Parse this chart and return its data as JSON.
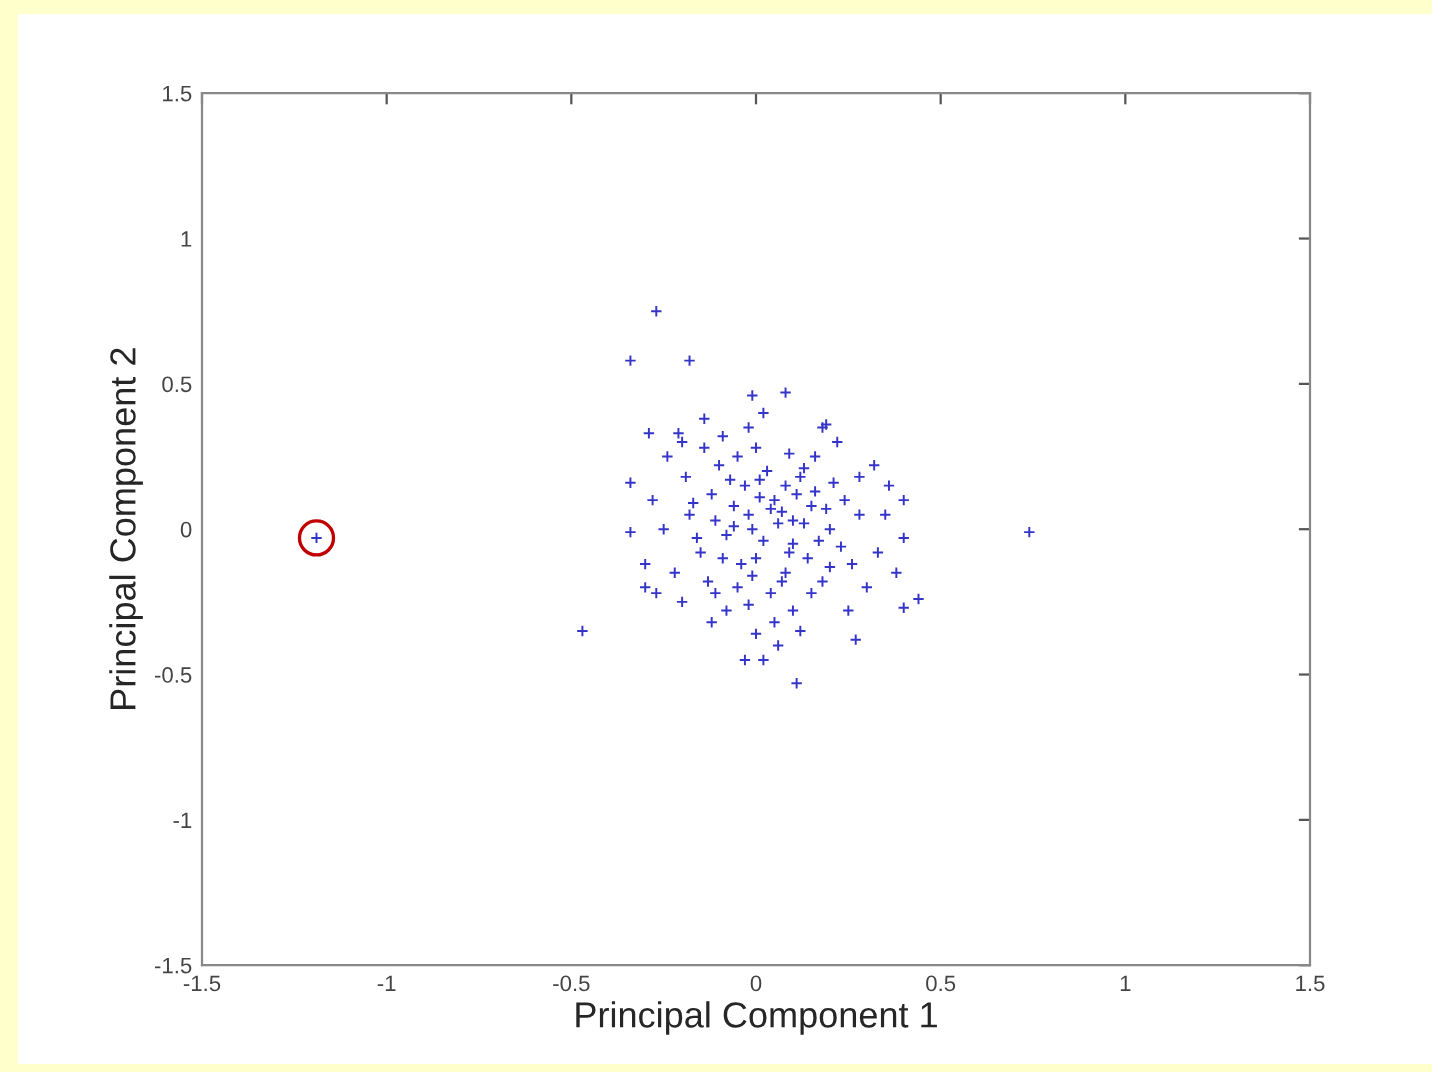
{
  "chart_data": {
    "type": "scatter",
    "xlabel": "Principal Component 1",
    "ylabel": "Principal Component 2",
    "xlim": [
      -1.5,
      1.5
    ],
    "ylim": [
      -1.5,
      1.5
    ],
    "xticks": [
      -1.5,
      -1,
      -0.5,
      0,
      0.5,
      1,
      1.5
    ],
    "yticks": [
      -1.5,
      -1,
      -0.5,
      0,
      0.5,
      1,
      1.5
    ],
    "grid": false,
    "legend": false,
    "series": [
      {
        "color": "#3434c8",
        "marker": "cross",
        "x": [
          -1.19,
          -0.27,
          -0.34,
          -0.18,
          -0.47,
          0.74,
          0.11,
          -0.03,
          0.02,
          0.27,
          0.4,
          0.44,
          0.36,
          0.19,
          0.08,
          -0.01,
          -0.29,
          -0.21,
          -0.34,
          -0.34,
          -0.3,
          0.4,
          -0.02,
          0.05,
          0.1,
          -0.08,
          0.0,
          0.15,
          -0.12,
          0.03,
          0.08,
          -0.05,
          0.2,
          -0.15,
          0.12,
          -0.1,
          0.18,
          -0.03,
          0.06,
          -0.06,
          0.02,
          0.14,
          -0.18,
          0.24,
          0.0,
          -0.08,
          0.1,
          0.26,
          -0.22,
          0.16,
          -0.14,
          0.04,
          -0.01,
          0.07,
          0.11,
          -0.04,
          0.09,
          -0.11,
          0.13,
          0.01,
          -0.07,
          0.17,
          -0.13,
          0.21,
          -0.19,
          0.05,
          -0.02,
          0.28,
          -0.25,
          0.3,
          -0.2,
          0.22,
          -0.09,
          0.12,
          -0.12,
          0.33,
          -0.28,
          0.02,
          0.06,
          0.32,
          -0.24,
          0.25,
          0.08,
          -0.05,
          0.15,
          -0.16,
          0.19,
          -0.01,
          0.04,
          0.1,
          -0.09,
          0.13,
          -0.02,
          0.07,
          -0.17,
          0.23,
          0.01,
          -0.06,
          0.16,
          -0.11,
          0.09,
          0.2,
          0.38,
          0.35,
          -0.3,
          -0.27,
          0.28,
          -0.2,
          0.18,
          0.0,
          -0.14,
          0.4
        ],
        "values": [
          -0.03,
          0.75,
          0.58,
          0.58,
          -0.35,
          -0.01,
          -0.53,
          -0.45,
          -0.45,
          -0.38,
          -0.27,
          -0.24,
          0.15,
          0.36,
          0.47,
          0.46,
          0.33,
          0.33,
          0.16,
          -0.01,
          -0.2,
          -0.03,
          0.05,
          0.1,
          -0.05,
          -0.02,
          -0.1,
          0.08,
          0.12,
          0.2,
          -0.15,
          -0.2,
          0.0,
          -0.08,
          0.18,
          0.22,
          -0.18,
          0.15,
          0.02,
          0.08,
          -0.04,
          -0.1,
          0.05,
          0.1,
          0.28,
          -0.28,
          -0.28,
          -0.12,
          -0.15,
          0.25,
          0.28,
          -0.22,
          0.0,
          0.06,
          0.12,
          -0.12,
          -0.08,
          0.03,
          0.02,
          0.11,
          0.17,
          -0.04,
          -0.18,
          0.16,
          0.18,
          -0.32,
          0.35,
          0.05,
          0.0,
          -0.2,
          -0.25,
          0.3,
          0.32,
          -0.35,
          -0.32,
          -0.08,
          0.1,
          0.4,
          -0.4,
          0.22,
          0.25,
          -0.28,
          0.15,
          0.25,
          -0.22,
          -0.03,
          0.07,
          -0.16,
          0.07,
          0.03,
          -0.1,
          0.21,
          -0.26,
          -0.18,
          0.09,
          -0.06,
          0.17,
          0.01,
          0.13,
          -0.22,
          0.26,
          -0.13,
          -0.15,
          0.05,
          -0.12,
          -0.22,
          0.18,
          0.3,
          0.35,
          -0.36,
          0.38,
          0.1
        ]
      },
      {
        "color": "#c00000",
        "marker": "circle",
        "x": [
          -1.19
        ],
        "values": [
          -0.03
        ]
      }
    ]
  }
}
